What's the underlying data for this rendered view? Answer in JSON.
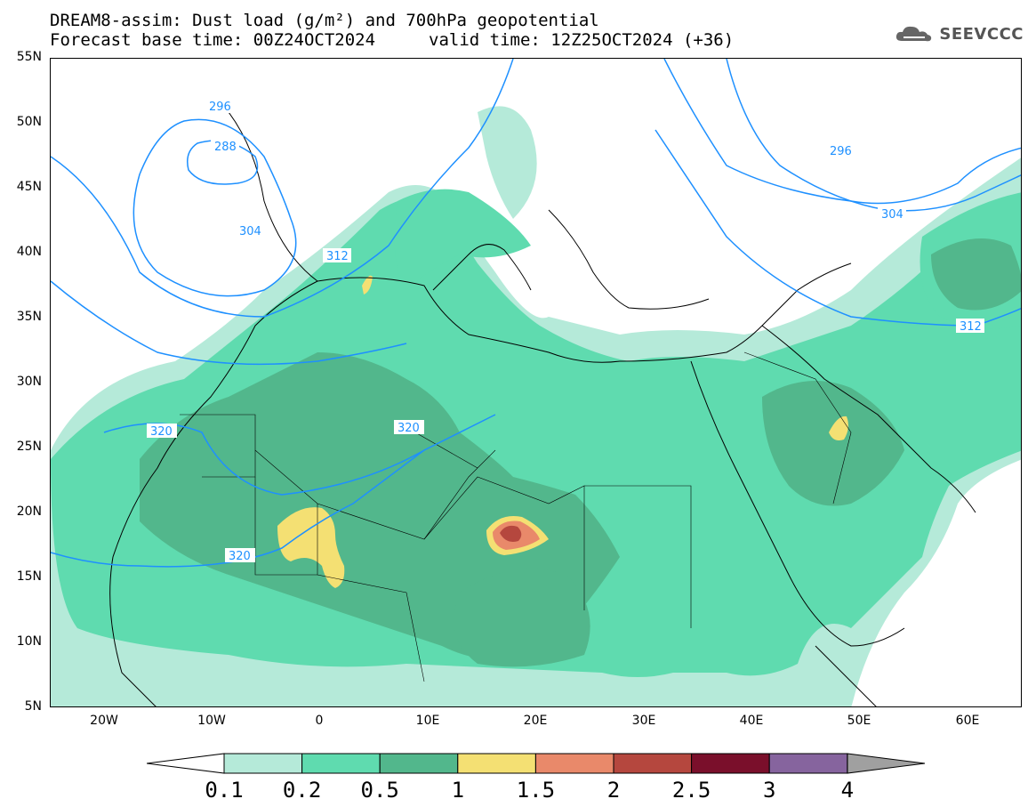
{
  "title": {
    "line1": "DREAM8-assim: Dust load (g/m²) and 700hPa geopotential",
    "line2": "Forecast base time: 00Z24OCT2024",
    "line2b": "valid time: 12Z25OCT2024 (+36)"
  },
  "logo": {
    "text": "SEEVCCC",
    "icon": "cloud-icon"
  },
  "map": {
    "lat_labels": [
      "55N",
      "50N",
      "45N",
      "40N",
      "35N",
      "30N",
      "25N",
      "20N",
      "15N",
      "10N",
      "5N"
    ],
    "lon_labels": [
      "20W",
      "10W",
      "0",
      "10E",
      "20E",
      "30E",
      "40E",
      "50E",
      "60E"
    ],
    "contour_labels": [
      "296",
      "288",
      "304",
      "312",
      "320",
      "320",
      "320",
      "296",
      "304",
      "312"
    ],
    "dust_levels": {
      "c1": "#b5ead9",
      "c2": "#5fdbaf",
      "c3": "#52b78c",
      "c4": "#f4e073",
      "c5": "#e9896a",
      "c6": "#b5473e",
      "c7": "#7a0f2b",
      "c8": "#86649e"
    },
    "geopotential_color": "#1e90ff"
  },
  "colorbar": {
    "labels": [
      "0.1",
      "0.2",
      "0.5",
      "1",
      "1.5",
      "2",
      "2.5",
      "3",
      "4"
    ],
    "colors": [
      "#b5ead9",
      "#5fdbaf",
      "#52b78c",
      "#f4e073",
      "#e9896a",
      "#b5473e",
      "#7a0f2b",
      "#86649e"
    ]
  }
}
